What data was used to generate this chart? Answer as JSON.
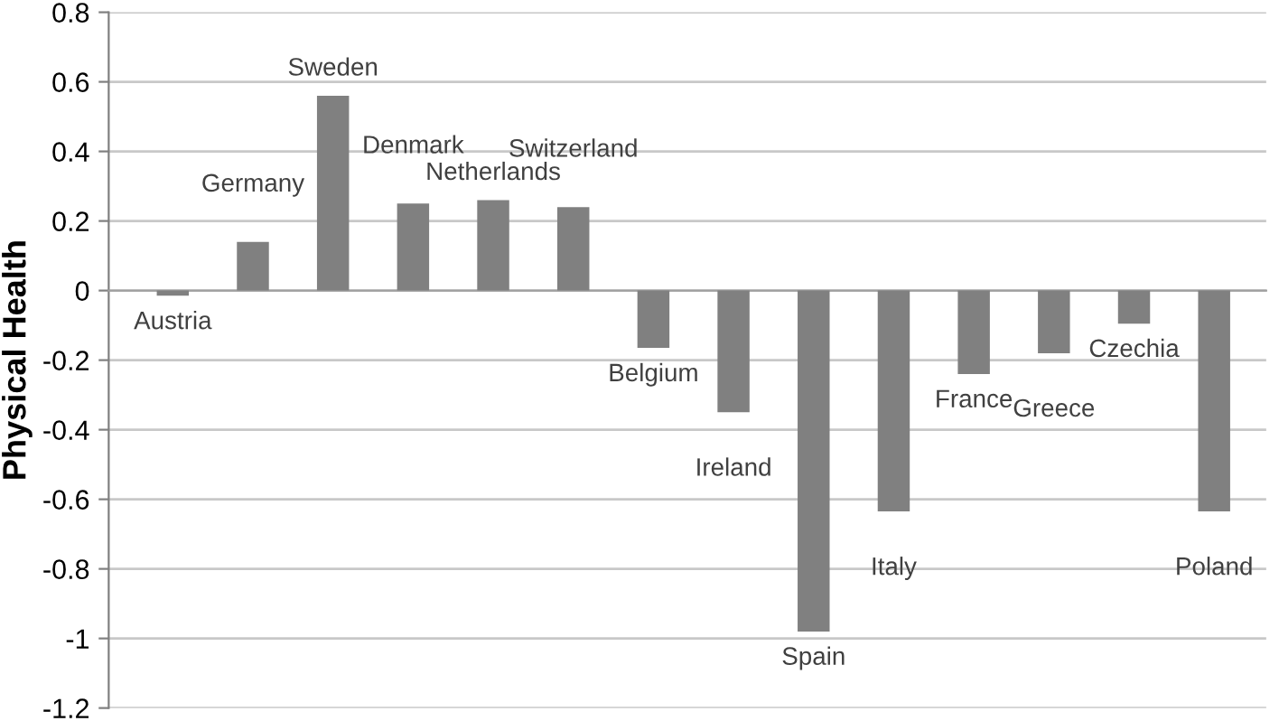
{
  "chart_data": {
    "type": "bar",
    "ylabel": "Physical Health",
    "categories": [
      "Austria",
      "Germany",
      "Sweden",
      "Denmark",
      "Netherlands",
      "Switzerland",
      "Belgium",
      "Ireland",
      "Spain",
      "Italy",
      "France",
      "Greece",
      "Czechia",
      "Poland"
    ],
    "values": [
      -0.015,
      0.14,
      0.56,
      0.25,
      0.26,
      0.24,
      -0.165,
      -0.35,
      -0.98,
      -0.635,
      -0.24,
      -0.18,
      -0.095,
      -0.635
    ],
    "color": "#808080",
    "ylim": [
      -1.2,
      0.8
    ],
    "yticks": [
      {
        "value": -1.2,
        "label": "-1.2"
      },
      {
        "value": -1,
        "label": "-1"
      },
      {
        "value": -0.8,
        "label": "-0.8"
      },
      {
        "value": -0.6,
        "label": "-0.6"
      },
      {
        "value": -0.4,
        "label": "-0.4"
      },
      {
        "value": -0.2,
        "label": "-0.2"
      },
      0,
      0.2,
      0.4,
      0.6,
      0.8
    ],
    "grid": "y",
    "legend": false
  }
}
